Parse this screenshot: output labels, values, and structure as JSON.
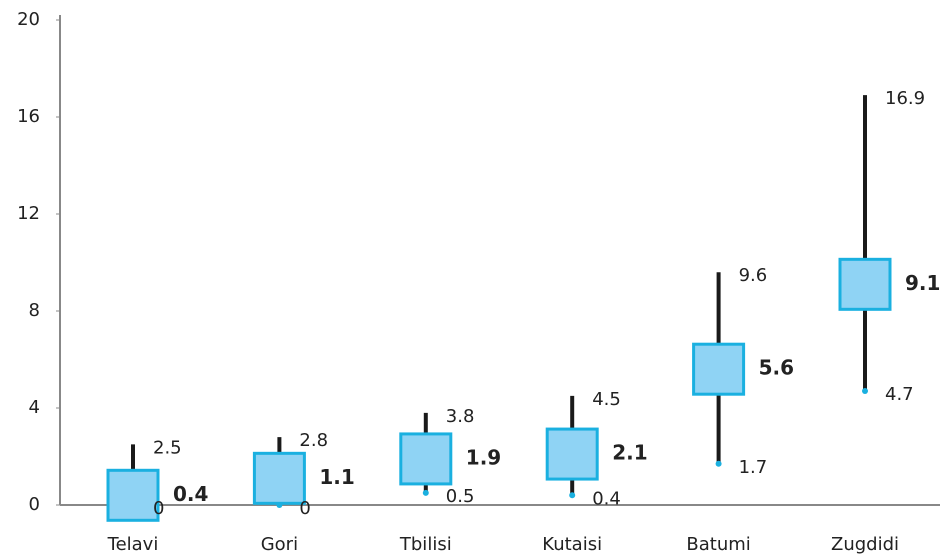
{
  "chart_data": {
    "type": "range",
    "categories": [
      "Telavi",
      "Gori",
      "Tbilisi",
      "Kutaisi",
      "Batumi",
      "Zugdidi"
    ],
    "values": [
      0.4,
      1.1,
      1.9,
      2.1,
      5.6,
      9.1
    ],
    "min": [
      0,
      0,
      0.5,
      0.4,
      1.7,
      4.7
    ],
    "max": [
      2.5,
      2.8,
      3.8,
      4.5,
      9.6,
      16.9
    ],
    "color": "#8fd3f4",
    "edge_color": "#1ab0e0",
    "line_color": "#1a1a1a",
    "ylim": [
      0,
      20
    ],
    "yticks": [
      0,
      4,
      8,
      12,
      16,
      20
    ],
    "grid": false
  }
}
